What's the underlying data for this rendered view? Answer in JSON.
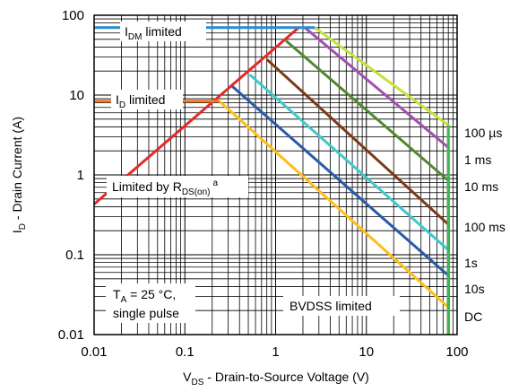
{
  "chart_data": {
    "type": "line",
    "xscale": "log",
    "yscale": "log",
    "xlim": [
      0.01,
      100
    ],
    "ylim": [
      0.01,
      100
    ],
    "grid": true,
    "x_ticks": [
      {
        "value": 0.01,
        "label": "0.01"
      },
      {
        "value": 0.1,
        "label": "0.1"
      },
      {
        "value": 1,
        "label": "1"
      },
      {
        "value": 10,
        "label": "10"
      },
      {
        "value": 100,
        "label": "100"
      }
    ],
    "y_ticks": [
      {
        "value": 100,
        "label": "100"
      },
      {
        "value": 10,
        "label": "10"
      },
      {
        "value": 1,
        "label": "1"
      },
      {
        "value": 0.1,
        "label": "0.1"
      },
      {
        "value": 0.01,
        "label": "0.01"
      }
    ],
    "xlabel": {
      "main": "V",
      "sub": "DS",
      "rest": " - Drain-to-Source Voltage (V)"
    },
    "ylabel": {
      "main": "I",
      "sub": "D",
      "rest": " - Drain Current (A)"
    },
    "annotations": {
      "idm": {
        "main": "I",
        "sub": "DM",
        "rest": " limited"
      },
      "id": {
        "main": "I",
        "sub": "D",
        "rest": " limited"
      },
      "rds": {
        "main": "Limited by R",
        "sub": "DS(on)",
        "sup": "a"
      },
      "ta_line1": {
        "main": "T",
        "sub": "A",
        "rest": " = 25 °C,"
      },
      "ta_line2": "single pulse",
      "bvdss": "BVDSS limited"
    },
    "series": [
      {
        "name": "100 µs",
        "color": "#c8e03c",
        "points": [
          [
            2.7,
            70
          ],
          [
            80,
            4.2
          ],
          [
            80,
            0.01
          ]
        ]
      },
      {
        "name": "1 ms",
        "color": "#a050b0",
        "points": [
          [
            2.1,
            70
          ],
          [
            80,
            2.2
          ],
          [
            80,
            0.01
          ]
        ]
      },
      {
        "name": "10 ms",
        "color": "#4f8a2e",
        "points": [
          [
            1.3,
            48
          ],
          [
            80,
            0.85
          ],
          [
            80,
            0.01
          ]
        ]
      },
      {
        "name": "100 ms",
        "color": "#7b3a16",
        "points": [
          [
            0.8,
            28
          ],
          [
            80,
            0.24
          ],
          [
            80,
            0.01
          ]
        ]
      },
      {
        "name": "1s",
        "color": "#40c8cc",
        "points": [
          [
            0.52,
            18
          ],
          [
            80,
            0.115
          ],
          [
            80,
            0.01
          ]
        ]
      },
      {
        "name": "10s",
        "color": "#2a5aa8",
        "points": [
          [
            0.33,
            13
          ],
          [
            80,
            0.055
          ],
          [
            80,
            0.01
          ]
        ]
      },
      {
        "name": "DC",
        "color": "#ffbe18",
        "points": [
          [
            0.24,
            8.4
          ],
          [
            80,
            0.022
          ],
          [
            80,
            0.01
          ]
        ]
      }
    ],
    "limit_lines": [
      {
        "label": "BVDSS limited",
        "color": "#3cb84a",
        "points": [
          [
            80,
            4.2
          ],
          [
            80,
            0.01
          ]
        ]
      },
      {
        "label": "Limited by RDS(on)",
        "color": "#e42a2a",
        "points": [
          [
            0.01,
            0.43
          ],
          [
            1.8,
            70
          ]
        ]
      },
      {
        "label": "IDM limited",
        "color": "#2a8ad0",
        "points": [
          [
            0.01,
            70
          ],
          [
            2.7,
            70
          ]
        ]
      },
      {
        "label": "ID limited",
        "color": "#f07a2a",
        "points": [
          [
            0.01,
            8.4
          ],
          [
            0.24,
            8.4
          ]
        ]
      }
    ]
  }
}
